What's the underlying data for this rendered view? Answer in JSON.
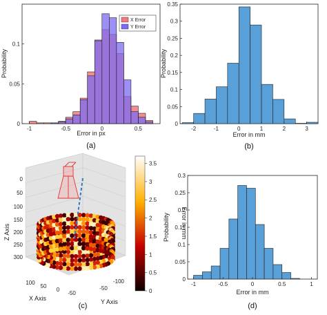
{
  "colors": {
    "x_error": "#f07a80",
    "y_error": "#7b6bf2",
    "overlap": "#7a3fb4",
    "hist": "#5aa0d8",
    "edge": "#1e1e1e",
    "pole": "#2f78c8",
    "camera": "#e53030"
  },
  "chart_data": [
    {
      "panel": "a",
      "type": "bar",
      "caption": "(a)",
      "xlabel": "Error in px",
      "ylabel": "Probability",
      "xlim": [
        -1.1,
        0.8
      ],
      "ylim": [
        0,
        0.15
      ],
      "xticks": [
        -1,
        -0.5,
        0,
        0.5
      ],
      "xtick_labels": [
        "-1",
        "-0.5",
        "0",
        "0.5"
      ],
      "yticks": [
        0,
        0.05,
        0.1
      ],
      "ytick_labels": [
        "0",
        "0.05",
        "0.1"
      ],
      "legend_position": "top-right",
      "bin_edges": [
        -1.0,
        -0.9,
        -0.8,
        -0.7,
        -0.6,
        -0.5,
        -0.4,
        -0.3,
        -0.2,
        -0.1,
        0.0,
        0.1,
        0.2,
        0.3,
        0.4,
        0.5,
        0.6,
        0.7
      ],
      "series": [
        {
          "name": "X Error",
          "values": [
            0.003,
            0.001,
            0.001,
            0.001,
            0.003,
            0.008,
            0.015,
            0.032,
            0.065,
            0.105,
            0.118,
            0.112,
            0.088,
            0.034,
            0.022,
            0.013,
            0.004
          ]
        },
        {
          "name": "Y Error",
          "values": [
            0.0,
            0.0,
            0.0,
            0.001,
            0.002,
            0.006,
            0.011,
            0.03,
            0.06,
            0.104,
            0.138,
            0.133,
            0.102,
            0.055,
            0.015,
            0.008,
            0.002
          ]
        }
      ]
    },
    {
      "panel": "b",
      "type": "bar",
      "caption": "(b)",
      "xlabel": "Error in mm",
      "ylabel": "Probability",
      "xlim": [
        -2.6,
        3.5
      ],
      "ylim": [
        0,
        0.35
      ],
      "xticks": [
        -2,
        -1,
        0,
        1,
        2,
        3
      ],
      "xtick_labels": [
        "-2",
        "-1",
        "0",
        "1",
        "2",
        "3"
      ],
      "yticks": [
        0,
        0.05,
        0.1,
        0.15,
        0.2,
        0.25,
        0.3,
        0.35
      ],
      "ytick_labels": [
        "0",
        "0.05",
        "0.1",
        "0.15",
        "0.2",
        "0.25",
        "0.3",
        "0.35"
      ],
      "bin_edges": [
        -2.5,
        -2.0,
        -1.5,
        -1.0,
        -0.5,
        0.0,
        0.5,
        1.0,
        1.5,
        2.0,
        2.5,
        3.0,
        3.5
      ],
      "values": [
        0.003,
        0.03,
        0.072,
        0.108,
        0.177,
        0.342,
        0.289,
        0.115,
        0.071,
        0.014,
        0.001,
        0.004
      ]
    },
    {
      "panel": "c",
      "type": "scatter",
      "caption": "(c)",
      "xlabel": "X Axis",
      "ylabel": "Y Axis",
      "zlabel": "Z Axis",
      "colorbar_label": "Error in mm",
      "colorbar_ticks": [
        "0",
        "0.5",
        "1",
        "1.5",
        "2",
        "2.5",
        "3",
        "3.5"
      ],
      "colorbar_range": [
        0,
        3.7
      ],
      "z_ticks": [
        "0",
        "50",
        "100",
        "150",
        "200",
        "250",
        "300"
      ],
      "x_ticks": [
        "100",
        "50",
        "0",
        "-50"
      ],
      "y_ticks": [
        "-50",
        "-100"
      ]
    },
    {
      "panel": "d",
      "type": "bar",
      "caption": "(d)",
      "xlabel": "Error in mm",
      "ylabel": "Probability",
      "xlim": [
        -1.1,
        1.1
      ],
      "ylim": [
        0,
        0.3
      ],
      "xticks": [
        -1,
        -0.5,
        0,
        0.5,
        1
      ],
      "xtick_labels": [
        "-1",
        "-0.5",
        "0",
        "0.5",
        "1"
      ],
      "yticks": [
        0,
        0.05,
        0.1,
        0.15,
        0.2,
        0.25,
        0.3
      ],
      "ytick_labels": [
        "0",
        "0.05",
        "0.1",
        "0.15",
        "0.2",
        "0.25",
        "0.3"
      ],
      "bin_edges": [
        -1.0,
        -0.85,
        -0.7,
        -0.55,
        -0.4,
        -0.25,
        -0.1,
        0.05,
        0.2,
        0.35,
        0.5,
        0.65,
        0.8
      ],
      "values": [
        0.011,
        0.021,
        0.038,
        0.089,
        0.174,
        0.271,
        0.263,
        0.158,
        0.089,
        0.042,
        0.019,
        0.002
      ]
    }
  ]
}
